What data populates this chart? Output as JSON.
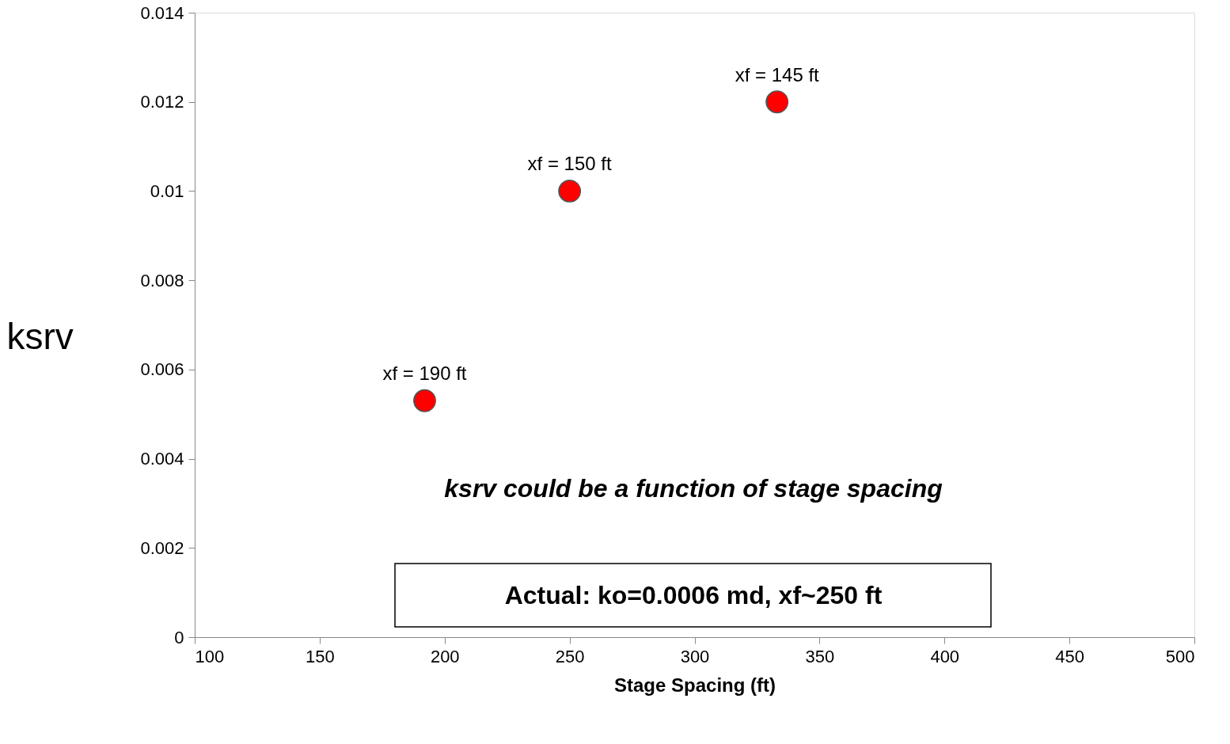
{
  "chart_data": {
    "type": "scatter",
    "xlabel": "Stage Spacing (ft)",
    "ylabel": "ksrv",
    "x": [
      192,
      250,
      333
    ],
    "series": [
      {
        "color": "#ff0000",
        "values": [
          0.0053,
          0.01,
          0.012
        ]
      }
    ],
    "xlim": [
      100,
      500
    ],
    "xticks": [
      100,
      150,
      200,
      250,
      300,
      350,
      400,
      450,
      500
    ],
    "ylim": [
      0,
      0.014
    ],
    "yticks": [
      0,
      0.002,
      0.004,
      0.006,
      0.008,
      0.01,
      0.012,
      0.014
    ],
    "grid": false,
    "annotations": [
      {
        "text": "xf = 190 ft",
        "x": 192,
        "y": 0.0053
      },
      {
        "text": "xf = 150 ft",
        "x": 250,
        "y": 0.01
      },
      {
        "text": "xf = 145 ft",
        "x": 333,
        "y": 0.012
      },
      "ksrv could be a function of stage spacing",
      "Actual: ko=0.0006 md, xf~250 ft"
    ]
  }
}
